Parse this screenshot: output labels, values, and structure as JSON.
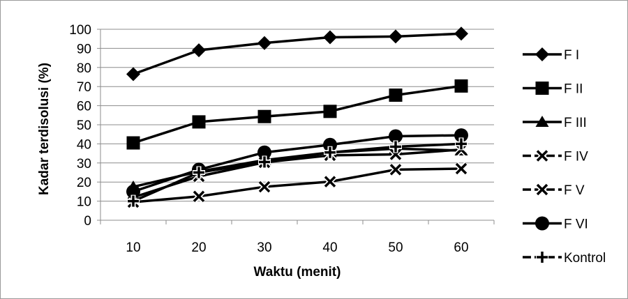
{
  "chart_data": {
    "type": "line",
    "title": "",
    "xlabel": "Waktu (menit)",
    "ylabel": "Kadar terdisolusi (%)",
    "categories": [
      "10",
      "20",
      "30",
      "40",
      "50",
      "60"
    ],
    "ylim": [
      0,
      100
    ],
    "yticks": [
      0,
      10,
      20,
      30,
      40,
      50,
      60,
      70,
      80,
      90,
      100
    ],
    "grid": "horizontal",
    "legend_position": "right",
    "series": [
      {
        "name": "F I",
        "marker": "diamond",
        "values": [
          76.5,
          89,
          92.8,
          95.8,
          96.2,
          97.7
        ]
      },
      {
        "name": "F II",
        "marker": "square",
        "values": [
          40.5,
          51.5,
          54.3,
          57,
          65.5,
          70.3
        ]
      },
      {
        "name": "F III",
        "marker": "triangle",
        "values": [
          17.5,
          25.5,
          31.5,
          35.5,
          37.5,
          36.5
        ]
      },
      {
        "name": "F IV",
        "marker": "x",
        "values": [
          9.5,
          12.5,
          17.5,
          20.2,
          26.5,
          27
        ]
      },
      {
        "name": "F V",
        "marker": "x",
        "values": [
          12,
          23,
          30.3,
          34,
          34.5,
          37
        ]
      },
      {
        "name": "F VI",
        "marker": "circle",
        "values": [
          15,
          26.5,
          35.5,
          39.5,
          44,
          44.5
        ]
      },
      {
        "name": "Kontrol",
        "marker": "plus",
        "values": [
          10,
          25,
          30.5,
          35.5,
          38.5,
          40
        ]
      }
    ]
  }
}
